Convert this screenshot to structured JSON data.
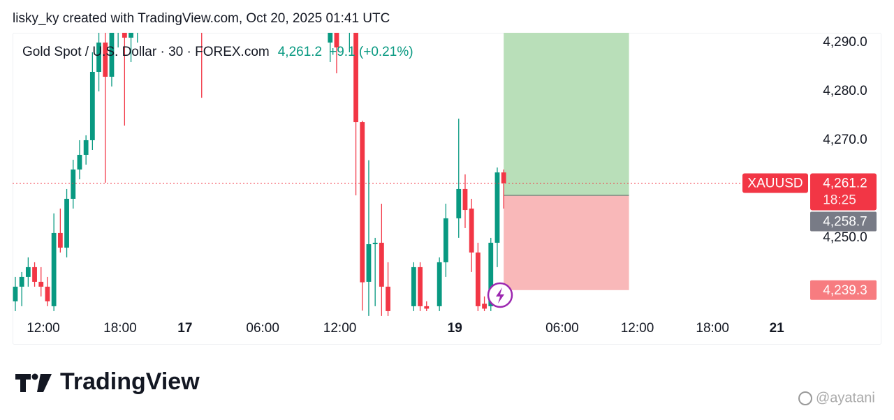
{
  "header": "lisky_ky created with TradingView.com, Oct 20, 2025 01:41 UTC",
  "chart_data": {
    "type": "candlestick",
    "title": "Gold Spot / U.S. Dollar · 30 · FOREX.com",
    "change": "+9.1 (+0.21%)",
    "symbol": "XAUUSD",
    "countdown": "18:25",
    "up_color": "#089981",
    "down_color": "#f23645",
    "x": [
      0,
      1,
      2,
      3,
      4,
      5,
      6,
      7,
      8,
      9,
      10,
      11,
      12,
      13,
      14,
      15,
      16,
      17,
      18,
      19,
      29,
      49,
      50,
      52,
      53,
      54,
      55,
      56,
      57,
      58,
      62,
      63,
      64,
      66,
      67,
      69,
      70,
      71,
      72,
      73,
      74,
      75,
      76
    ],
    "open": [
      4237,
      4240,
      4242,
      4244,
      4241,
      4240,
      4236,
      4251,
      4248,
      4258,
      4264,
      4267,
      4270,
      4284,
      4290,
      4283,
      4292,
      4295,
      4291,
      4294,
      4300,
      4290,
      4295,
      4292,
      4294,
      4273.7,
      4241,
      4248.7,
      4249,
      4240,
      4236,
      4244,
      4236,
      4236,
      4245,
      4254,
      4260,
      4256,
      4247,
      4236.5,
      4236,
      4249,
      4263.4
    ],
    "high": [
      4242,
      4243,
      4246,
      4245,
      4244,
      4242,
      4255,
      4256,
      4260,
      4266,
      4270,
      4271,
      4288,
      4292,
      4294,
      4296,
      4298,
      4298,
      4298,
      4299,
      4305,
      4298,
      4297,
      4296,
      4296,
      4274,
      4265.9,
      4250,
      4257,
      4245,
      4245,
      4245,
      4237,
      4246,
      4257,
      4274.4,
      4263,
      4258,
      4249,
      4238,
      4250,
      4264.4,
      4264
    ],
    "low": [
      4235,
      4236,
      4240,
      4240,
      4238,
      4236,
      4235,
      4247,
      4246,
      4256,
      4262,
      4265,
      4268,
      4280,
      4261.3,
      4281,
      4289,
      4273,
      4286,
      4290,
      4278.7,
      4286,
      4283.7,
      4288,
      4258.7,
      4235.1,
      4234,
      4236,
      4234,
      4234,
      4235,
      4235,
      4235,
      4235,
      4242,
      4250,
      4252,
      4243,
      4235,
      4235,
      4235,
      4244,
      4256
    ],
    "close": [
      4240,
      4242,
      4244,
      4241,
      4240,
      4237,
      4251,
      4248,
      4258,
      4264,
      4267,
      4270,
      4284,
      4290,
      4283,
      4292,
      4295,
      4291,
      4294,
      4297,
      4296,
      4295,
      4289,
      4294,
      4273.7,
      4240.9,
      4248.7,
      4249,
      4240,
      4235,
      4244,
      4236,
      4235.5,
      4245,
      4254,
      4260,
      4255.7,
      4247,
      4236,
      4235.5,
      4249,
      4263.4,
      4261.2
    ],
    "xlim": [
      -0.43,
      123.7
    ],
    "ylim": [
      4233.7,
      4292
    ],
    "xticks": [
      {
        "value": 4.35,
        "label": "12:00"
      },
      {
        "value": 16.3,
        "label": "18:00"
      },
      {
        "value": 26.4,
        "label": "17"
      },
      {
        "value": 38.5,
        "label": "06:00"
      },
      {
        "value": 50.5,
        "label": "12:00"
      },
      {
        "value": 68.4,
        "label": "19"
      },
      {
        "value": 85.1,
        "label": "06:00"
      },
      {
        "value": 96.8,
        "label": "12:00"
      },
      {
        "value": 108.5,
        "label": "18:00"
      },
      {
        "value": 118.5,
        "label": "21"
      }
    ],
    "yticks": [
      {
        "value": 4290,
        "label": "4,290.0"
      },
      {
        "value": 4280,
        "label": "4,280.0"
      },
      {
        "value": 4270,
        "label": "4,270.0"
      },
      {
        "value": 4250,
        "label": "4,250.0"
      }
    ],
    "last_price": {
      "value": 4261.2,
      "label": "4,261.2"
    },
    "position": {
      "x_start": 76,
      "x_end": 95.5,
      "entry": {
        "value": 4258.7,
        "label": "4,258.7"
      },
      "stop": {
        "value": 4239.3,
        "label": "4,239.3"
      },
      "target": 4292
    }
  },
  "footer": {
    "brand": "TradingView",
    "watermark": "@ayatani"
  }
}
